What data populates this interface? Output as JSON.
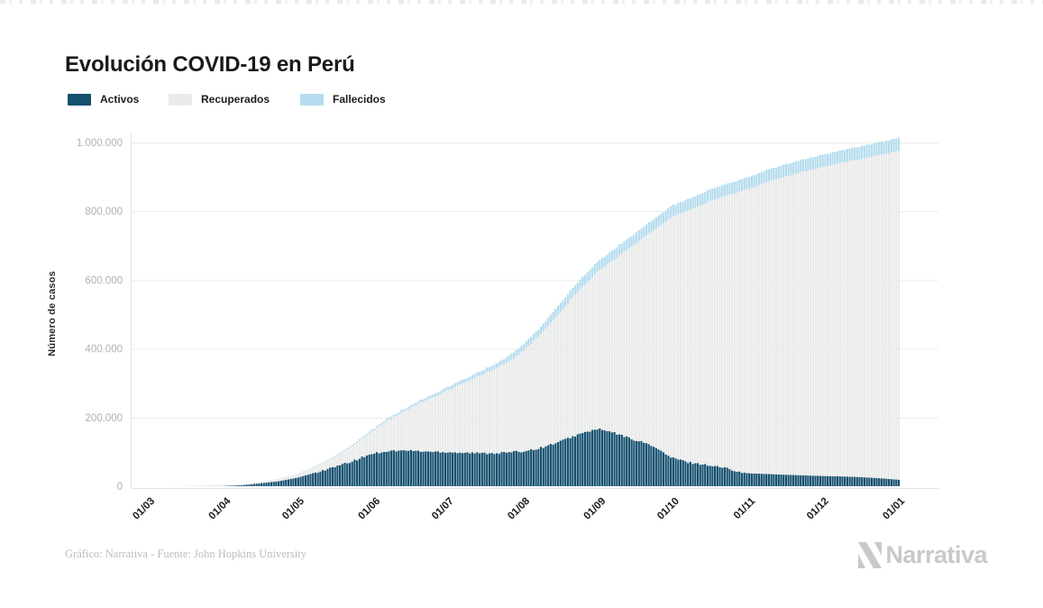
{
  "page": {
    "title": "Evolución COVID-19 en Perú"
  },
  "legend": {
    "items": [
      {
        "label": "Activos",
        "color": "#15506F"
      },
      {
        "label": "Recuperados",
        "color": "#E9EAEA"
      },
      {
        "label": "Fallecidos",
        "color": "#B5DCEE"
      }
    ]
  },
  "chart_data": {
    "type": "bar",
    "stacked": true,
    "title": "Evolución COVID-19 en Perú",
    "xlabel": "",
    "ylabel": "Número de casos",
    "grid": "horizontal",
    "legend_position": "top-left",
    "ylim": [
      0,
      1050000
    ],
    "y_ticks": [
      {
        "value": 0,
        "label": "0"
      },
      {
        "value": 200000,
        "label": "200.000"
      },
      {
        "value": 400000,
        "label": "400.000"
      },
      {
        "value": 600000,
        "label": "600.000"
      },
      {
        "value": 800000,
        "label": "800.000"
      },
      {
        "value": 1000000,
        "label": "1.000.000"
      }
    ],
    "x_ticks": [
      {
        "day": 0,
        "label": "01/03"
      },
      {
        "day": 31,
        "label": "01/04"
      },
      {
        "day": 61,
        "label": "01/05"
      },
      {
        "day": 92,
        "label": "01/06"
      },
      {
        "day": 122,
        "label": "01/07"
      },
      {
        "day": 153,
        "label": "01/08"
      },
      {
        "day": 184,
        "label": "01/09"
      },
      {
        "day": 214,
        "label": "01/10"
      },
      {
        "day": 245,
        "label": "01/11"
      },
      {
        "day": 275,
        "label": "01/12"
      },
      {
        "day": 306,
        "label": "01/01"
      }
    ],
    "anchor_days": [
      0,
      10,
      20,
      30,
      38,
      45,
      53,
      61,
      68,
      75,
      83,
      91,
      98,
      106,
      113,
      121,
      128,
      136,
      143,
      147,
      152,
      160,
      167,
      175,
      183,
      190,
      197,
      205,
      213,
      220,
      228,
      236,
      244,
      251,
      258,
      266,
      274,
      281,
      289,
      297,
      306
    ],
    "series": [
      {
        "name": "Activos",
        "color": "#15506F",
        "values": [
          0,
          10,
          250,
          650,
          2900,
          8200,
          14500,
          25500,
          40000,
          54000,
          72000,
          95000,
          103000,
          104000,
          101000,
          100000,
          98000,
          96000,
          97000,
          99000,
          101000,
          112000,
          128000,
          150000,
          167000,
          155000,
          138000,
          120000,
          84000,
          70000,
          62000,
          52000,
          38000,
          36000,
          34000,
          32000,
          30000,
          29000,
          27000,
          24000,
          19000
        ]
      },
      {
        "name": "Recuperados",
        "color": "#E9EAEA",
        "values": [
          0,
          0,
          40,
          420,
          1280,
          3050,
          6470,
          10450,
          17330,
          27600,
          44600,
          64500,
          91300,
          121100,
          148800,
          175300,
          201000,
          228600,
          251100,
          263000,
          287000,
          330500,
          371000,
          416500,
          456100,
          506100,
          560100,
          620300,
          698500,
          732000,
          764600,
          794100,
          825600,
          846200,
          863800,
          881400,
          897100,
          909700,
          923200,
          937900,
          956500
        ]
      },
      {
        "name": "Fallecidos",
        "color": "#B5DCEE",
        "values": [
          0,
          0,
          10,
          30,
          120,
          250,
          630,
          1050,
          1670,
          2400,
          3400,
          4500,
          5700,
          6900,
          8200,
          9700,
          11000,
          12400,
          13900,
          18000,
          19000,
          20500,
          26000,
          27500,
          28900,
          29900,
          30900,
          31700,
          32500,
          33000,
          33400,
          33900,
          34400,
          34800,
          35200,
          35600,
          35900,
          36300,
          36800,
          37100,
          37500
        ]
      }
    ],
    "final_totals_note": "total cases ≈ 1.013.000 on 01/01"
  },
  "footer": {
    "credit": "Gráfico: Narrativa - Fuente: John Hopkins University",
    "logo_text": "Narrativa"
  }
}
